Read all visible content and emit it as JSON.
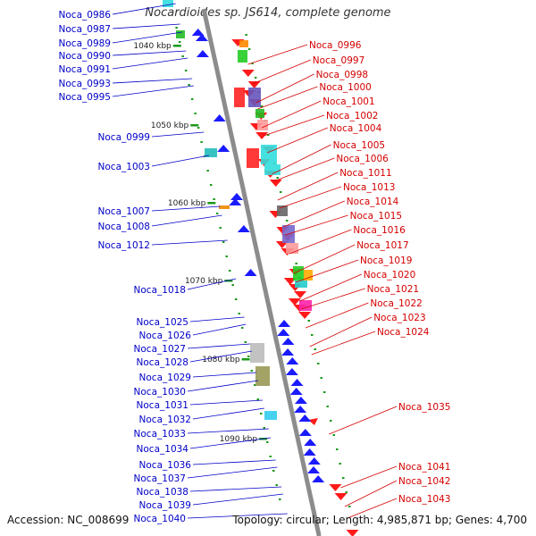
{
  "title": "Nocardioides sp. JS614, complete genome",
  "footer": {
    "accession_label": "Accession:",
    "accession": "NC_008699",
    "topology": "Topology: circular; Length: 4,985,871 bp; Genes: 4,700"
  },
  "colors": {
    "backbone": "#8c8c8c",
    "left_labels": "#0000c8",
    "right_labels": "#d40000",
    "forward_gene": "#1a1aff",
    "reverse_gene": "#ff1a1a",
    "tick": "#1a9a1a"
  },
  "kbp_markers": [
    {
      "label": "1040 kbp"
    },
    {
      "label": "1050 kbp"
    },
    {
      "label": "1060 kbp"
    },
    {
      "label": "1070 kbp"
    },
    {
      "label": "1080 kbp"
    },
    {
      "label": "1090 kbp"
    }
  ],
  "left_genes": [
    "Noca_0986",
    "Noca_0987",
    "Noca_0989",
    "Noca_0990",
    "Noca_0991",
    "Noca_0993",
    "Noca_0995",
    "Noca_0999",
    "Noca_1003",
    "Noca_1007",
    "Noca_1008",
    "Noca_1012",
    "Noca_1018",
    "Noca_1025",
    "Noca_1026",
    "Noca_1027",
    "Noca_1028",
    "Noca_1029",
    "Noca_1030",
    "Noca_1031",
    "Noca_1032",
    "Noca_1033",
    "Noca_1034",
    "Noca_1036",
    "Noca_1037",
    "Noca_1038",
    "Noca_1039",
    "Noca_1040"
  ],
  "right_genes": [
    "Noca_0996",
    "Noca_0997",
    "Noca_0998",
    "Noca_1000",
    "Noca_1001",
    "Noca_1002",
    "Noca_1004",
    "Noca_1005",
    "Noca_1006",
    "Noca_1011",
    "Noca_1013",
    "Noca_1014",
    "Noca_1015",
    "Noca_1016",
    "Noca_1017",
    "Noca_1019",
    "Noca_1020",
    "Noca_1021",
    "Noca_1022",
    "Noca_1023",
    "Noca_1024",
    "Noca_1035",
    "Noca_1041",
    "Noca_1042",
    "Noca_1043"
  ]
}
